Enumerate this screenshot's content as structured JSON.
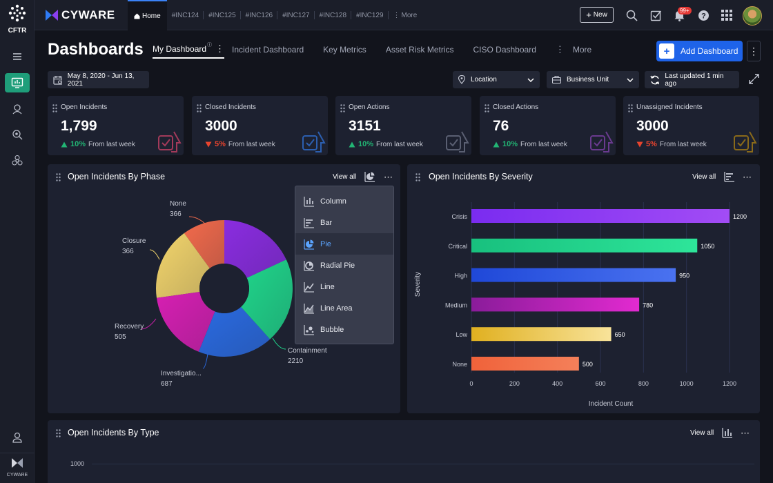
{
  "rail": {
    "brand": "CFTR",
    "footer_brand": "CYWARE"
  },
  "topbar": {
    "brand": "CYWARE",
    "tabs": [
      "Home",
      "#INC124",
      "#INC125",
      "#INC126",
      "#INC127",
      "#INC128",
      "#INC129",
      "More"
    ],
    "new_label": "New",
    "notification_count": "99+"
  },
  "header": {
    "title": "Dashboards",
    "tabs": [
      "My Dashboard",
      "Incident Dashboard",
      "Key Metrics",
      "Asset Risk Metrics",
      "CISO Dashboard",
      "More"
    ],
    "add_label": "Add Dashboard"
  },
  "filters": {
    "date_range": "May 8, 2020 - Jun 13, 2021",
    "location": "Location",
    "business_unit": "Business Unit",
    "last_updated": "Last updated 1 min ago"
  },
  "kpis": [
    {
      "label": "Open Incidents",
      "value": "1,799",
      "change": "10%",
      "dir": "up",
      "note": "From last week",
      "color": "#a33a5a"
    },
    {
      "label": "Closed Incidents",
      "value": "3000",
      "change": "5%",
      "dir": "down",
      "note": "From last week",
      "color": "#2c5fb0"
    },
    {
      "label": "Open Actions",
      "value": "3151",
      "change": "10%",
      "dir": "up",
      "note": "From last week",
      "color": "#5a5f72"
    },
    {
      "label": "Closed Actions",
      "value": "76",
      "change": "10%",
      "dir": "up",
      "note": "From last week",
      "color": "#6a3a8f"
    },
    {
      "label": "Unassigned Incidents",
      "value": "3000",
      "change": "5%",
      "dir": "down",
      "note": "From last week",
      "color": "#8a6a1a"
    }
  ],
  "panels": {
    "phase": {
      "title": "Open Incidents By Phase",
      "view_all": "View all"
    },
    "severity": {
      "title": "Open Incidents By Severity",
      "view_all": "View all"
    },
    "type": {
      "title": "Open Incidents By Type",
      "view_all": "View all",
      "tick": "1000"
    }
  },
  "chart_menu": {
    "items": [
      "Column",
      "Bar",
      "Pie",
      "Radial Pie",
      "Line",
      "Line Area",
      "Bubble"
    ],
    "selected": "Pie"
  },
  "chart_data": [
    {
      "type": "pie",
      "title": "Open Incidents By Phase",
      "categories": [
        "None",
        "Closure",
        "Recovery",
        "Investigatio...",
        "Containment",
        ""
      ],
      "values": [
        366,
        366,
        505,
        687,
        2210,
        null
      ],
      "colors": [
        "#f26a4b",
        "#f2d46b",
        "#d61fb2",
        "#2a6ae0",
        "#1fd58a",
        "#8a2ce0"
      ]
    },
    {
      "type": "bar",
      "orientation": "horizontal",
      "title": "Open Incidents By Severity",
      "categories": [
        "Crisis",
        "Critical",
        "High",
        "Medium",
        "Low",
        "None"
      ],
      "values": [
        1200,
        1050,
        950,
        780,
        650,
        500
      ],
      "xlabel": "Incident Count",
      "ylabel": "Severity",
      "xlim": [
        0,
        1200
      ],
      "xticks": [
        0,
        200,
        400,
        600,
        800,
        1000,
        1200
      ],
      "colors": [
        [
          "#7a2cf0",
          "#a24cf5"
        ],
        [
          "#18c07e",
          "#2ee59a"
        ],
        [
          "#1f48d8",
          "#4a72f0"
        ],
        [
          "#8a1c9a",
          "#e22ad0"
        ],
        [
          "#e0b020",
          "#f8e39a"
        ],
        [
          "#f0623a",
          "#f4805a"
        ]
      ]
    }
  ]
}
